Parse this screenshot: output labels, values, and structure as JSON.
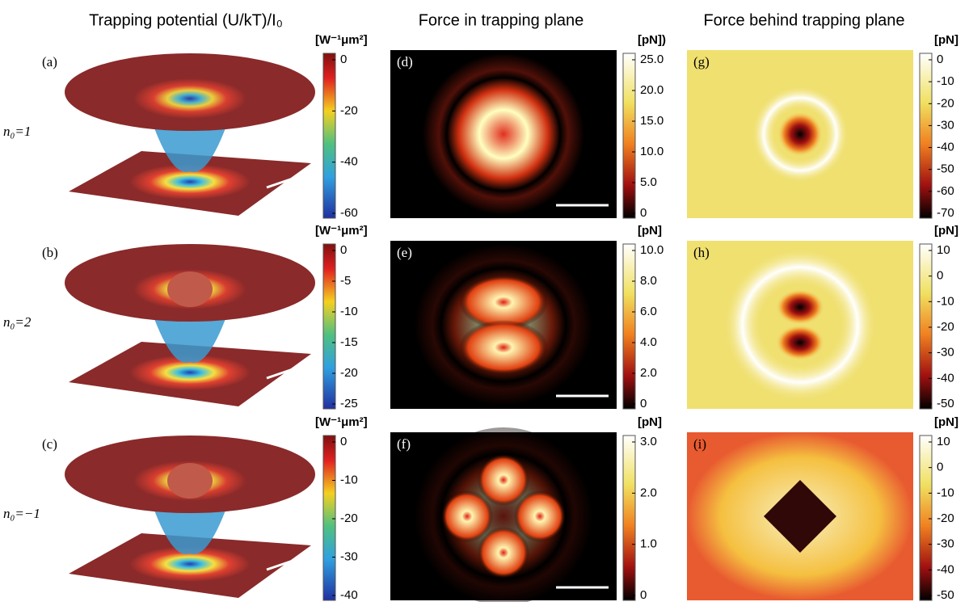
{
  "column_titles": [
    "Trapping potential  (U/kT)/I₀",
    "Force in trapping plane",
    "Force behind trapping plane"
  ],
  "row_params": [
    "n₀=1",
    "n₀=2",
    "n₀=−1"
  ],
  "panels": [
    {
      "label": "(a)",
      "unit": "[W⁻¹μm²]",
      "ticks": [
        "0",
        "-20",
        "-40",
        "-60"
      ]
    },
    {
      "label": "(d)",
      "unit": "[pN])",
      "ticks": [
        "25.0",
        "20.0",
        "15.0",
        "10.0",
        "5.0",
        "0"
      ]
    },
    {
      "label": "(g)",
      "unit": "[pN]",
      "ticks": [
        "0",
        "-10",
        "-20",
        "-30",
        "-40",
        "-50",
        "-60",
        "-70"
      ]
    },
    {
      "label": "(b)",
      "unit": "[W⁻¹μm²]",
      "ticks": [
        "0",
        "-5",
        "-10",
        "-15",
        "-20",
        "-25"
      ]
    },
    {
      "label": "(e)",
      "unit": "[pN]",
      "ticks": [
        "10.0",
        "8.0",
        "6.0",
        "4.0",
        "2.0",
        "0"
      ]
    },
    {
      "label": "(h)",
      "unit": "[pN]",
      "ticks": [
        "10",
        "0",
        "-10",
        "-20",
        "-30",
        "-40",
        "-50"
      ]
    },
    {
      "label": "(c)",
      "unit": "[W⁻¹μm²]",
      "ticks": [
        "0",
        "-10",
        "-20",
        "-30",
        "-40"
      ]
    },
    {
      "label": "(f)",
      "unit": "[pN]",
      "ticks": [
        "3.0",
        "2.0",
        "1.0",
        "0"
      ]
    },
    {
      "label": "(i)",
      "unit": "[pN]",
      "ticks": [
        "10",
        "0",
        "-10",
        "-20",
        "-30",
        "-40",
        "-50"
      ]
    }
  ]
}
